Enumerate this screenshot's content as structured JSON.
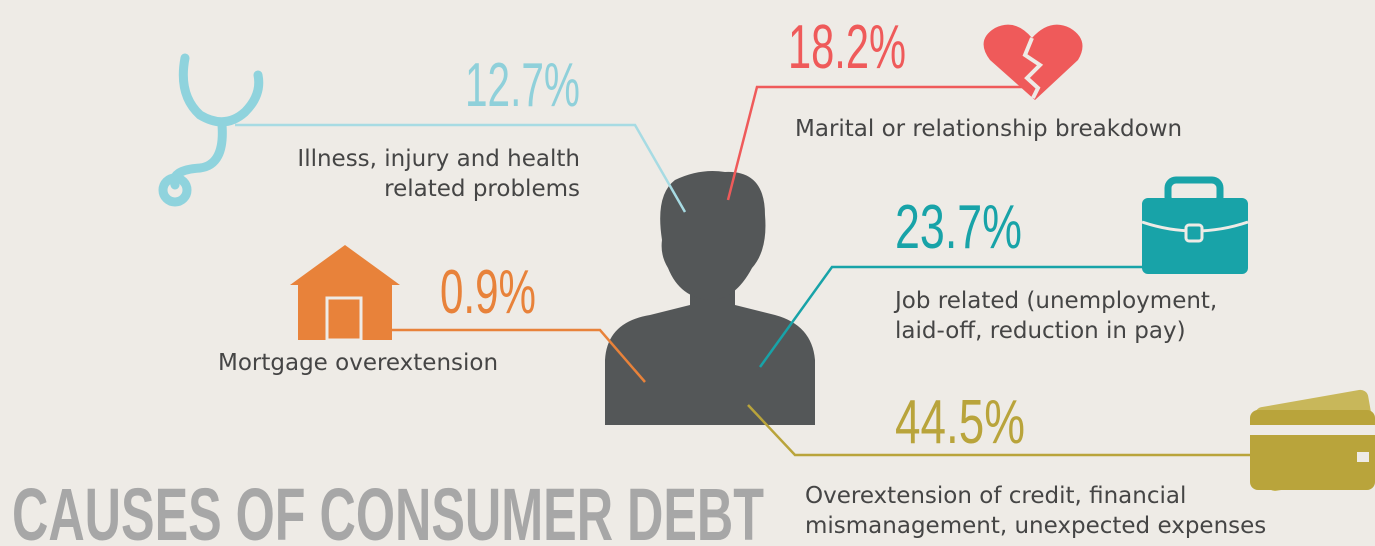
{
  "title": "CAUSES OF CONSUMER DEBT",
  "items": [
    {
      "percent": "12.7%",
      "description": [
        "Illness, injury and health",
        "related problems"
      ]
    },
    {
      "percent": "18.2%",
      "description": [
        "Marital or relationship breakdown"
      ]
    },
    {
      "percent": "23.7%",
      "description": [
        "Job related (unemployment,",
        "laid-off, reduction in pay)"
      ]
    },
    {
      "percent": "0.9%",
      "description": [
        "Mortgage overextension"
      ]
    },
    {
      "percent": "44.5%",
      "description": [
        "Overextension of credit, financial",
        "mismanagement, unexpected expenses"
      ]
    }
  ]
}
